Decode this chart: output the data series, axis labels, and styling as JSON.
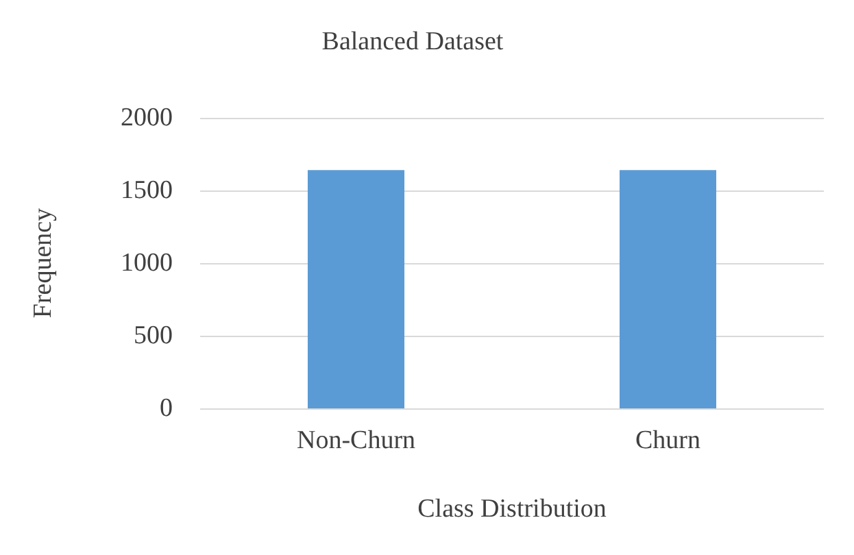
{
  "chart_data": {
    "type": "bar",
    "title": "Balanced Dataset",
    "xlabel": "Class Distribution",
    "ylabel": "Frequency",
    "categories": [
      "Non-Churn",
      "Churn"
    ],
    "values": [
      1640,
      1640
    ],
    "color": "#5b9bd5",
    "ylim": [
      0,
      2000
    ],
    "yticks": [
      0,
      500,
      1000,
      1500,
      2000
    ],
    "grid": "y"
  }
}
